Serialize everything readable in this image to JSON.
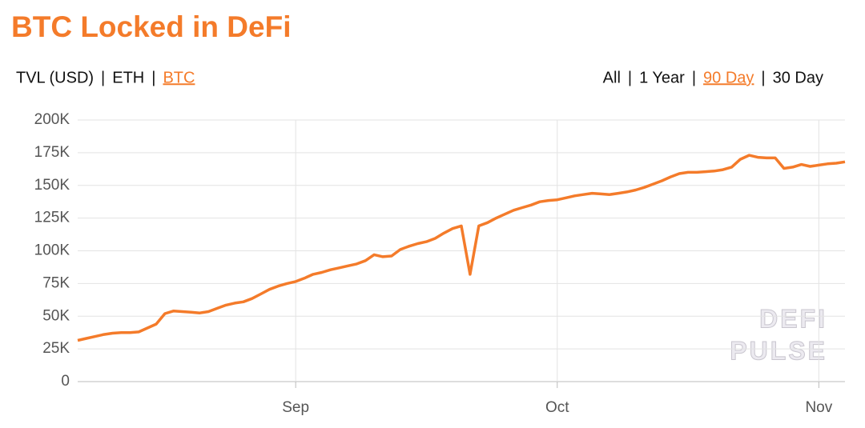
{
  "controls": {
    "units": [
      "TVL (USD)",
      "ETH",
      "BTC"
    ],
    "unit_selected": 2,
    "ranges": [
      "All",
      "1 Year",
      "90 Day",
      "30 Day"
    ],
    "range_selected": 2,
    "separator": "|"
  },
  "watermark": [
    "DEFI",
    "PULSE"
  ],
  "chart_data": {
    "type": "line",
    "title": "BTC Locked in DeFi",
    "categories": [
      null,
      null,
      null,
      null,
      null,
      null,
      null,
      null,
      null,
      null,
      null,
      null,
      null,
      null,
      null,
      null,
      null,
      null,
      null,
      null,
      null,
      null,
      null,
      null,
      null,
      "Sep",
      null,
      null,
      null,
      null,
      null,
      null,
      null,
      null,
      null,
      null,
      null,
      null,
      null,
      null,
      null,
      null,
      null,
      null,
      null,
      null,
      null,
      null,
      null,
      null,
      null,
      null,
      null,
      null,
      null,
      "Oct",
      null,
      null,
      null,
      null,
      null,
      null,
      null,
      null,
      null,
      null,
      null,
      null,
      null,
      null,
      null,
      null,
      null,
      null,
      null,
      null,
      null,
      null,
      null,
      null,
      null,
      null,
      null,
      null,
      null,
      "Nov",
      null,
      null,
      null
    ],
    "series": [
      {
        "name": "BTC",
        "color": "#f47b2a",
        "values": [
          31500,
          33000,
          34500,
          36000,
          37000,
          37500,
          37500,
          38000,
          41000,
          44000,
          52000,
          54000,
          53500,
          53000,
          52500,
          53500,
          56000,
          58500,
          60000,
          61000,
          63500,
          67000,
          70500,
          73000,
          75000,
          76500,
          79000,
          82000,
          83500,
          85500,
          87000,
          88500,
          90000,
          92500,
          97000,
          95500,
          96000,
          101000,
          103500,
          105500,
          107000,
          109500,
          113500,
          117000,
          119000,
          82000,
          119000,
          121500,
          125000,
          128000,
          131000,
          133000,
          135000,
          137500,
          138500,
          139000,
          140500,
          142000,
          143000,
          144000,
          143500,
          143000,
          144000,
          145000,
          146500,
          148500,
          151000,
          153500,
          156500,
          159000,
          160000,
          160000,
          160500,
          161000,
          162000,
          164000,
          170000,
          173000,
          171500,
          171000,
          171000,
          163000,
          164000,
          166000,
          164500,
          165500,
          166500,
          167000,
          168000
        ]
      }
    ],
    "ylim": [
      0,
      200000
    ],
    "yticks": [
      0,
      {
        "value": 25000,
        "label": "25K"
      },
      {
        "value": 50000,
        "label": "50K"
      },
      {
        "value": 75000,
        "label": "75K"
      },
      {
        "value": 100000,
        "label": "100K"
      },
      {
        "value": 125000,
        "label": "125K"
      },
      {
        "value": 150000,
        "label": "150K"
      },
      {
        "value": 175000,
        "label": "175K"
      },
      {
        "value": 200000,
        "label": "200K"
      }
    ],
    "grid": true
  }
}
